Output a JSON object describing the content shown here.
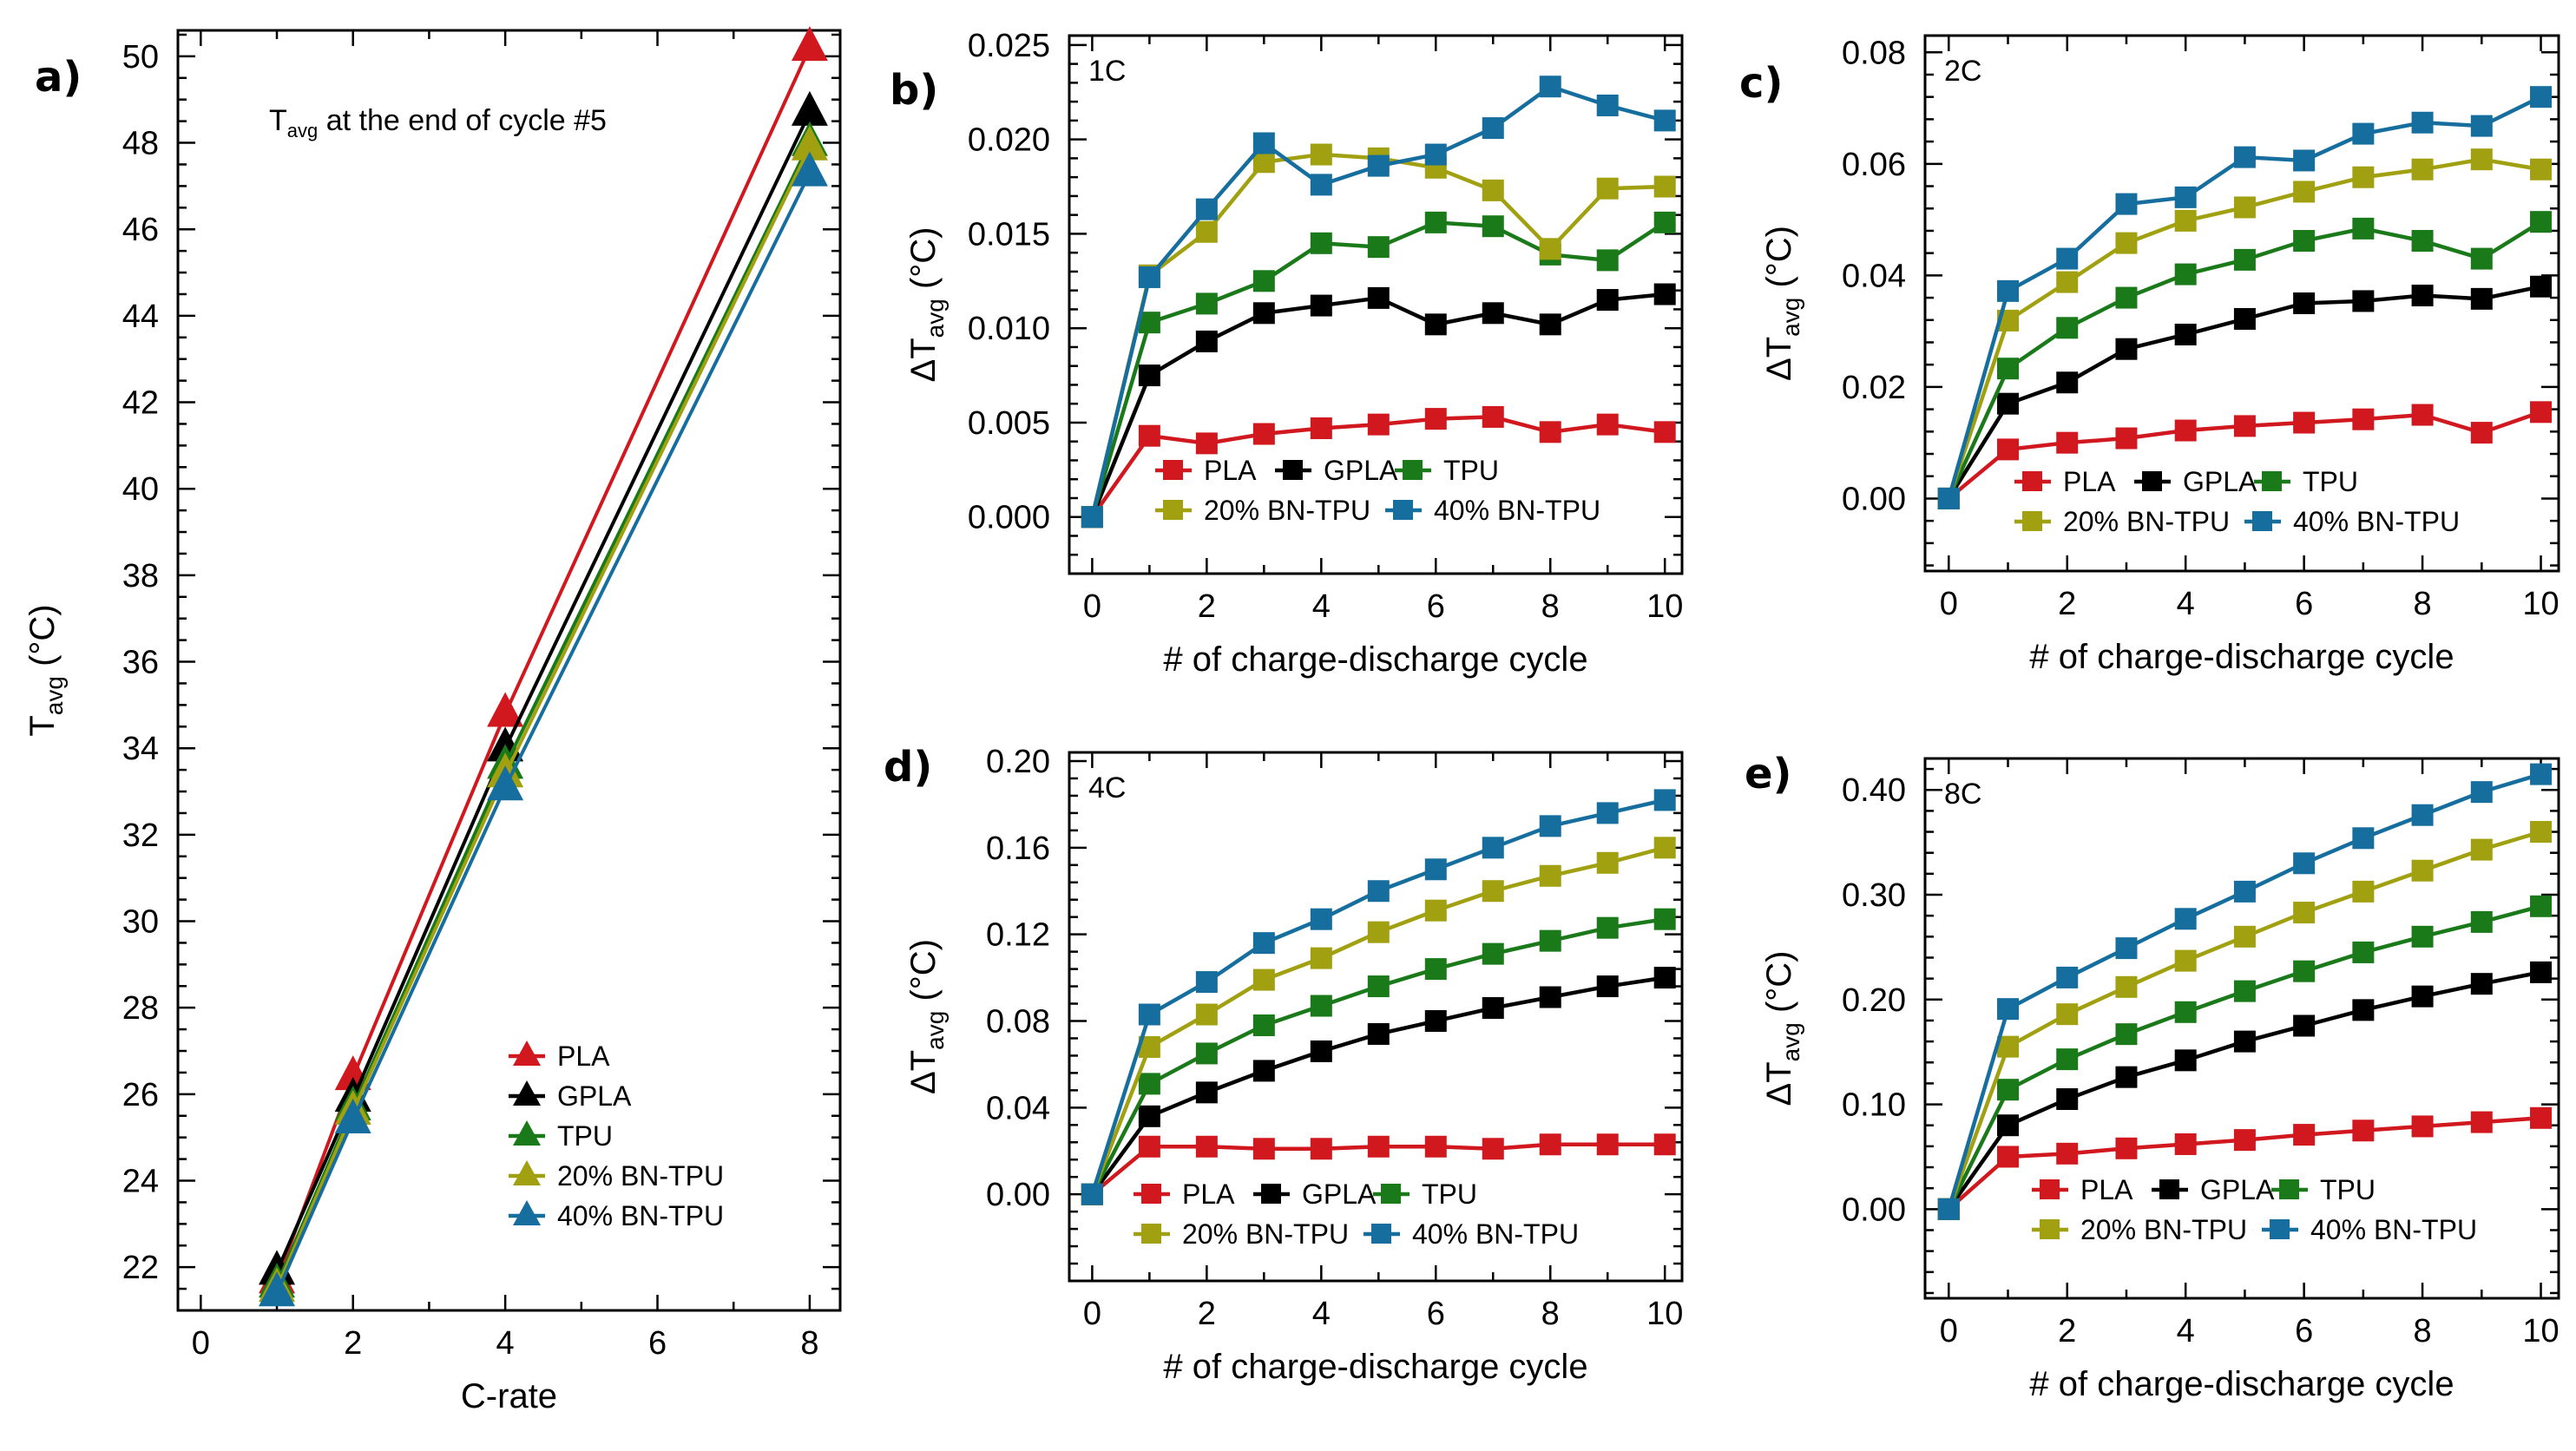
{
  "figure": {
    "colors": {
      "PLA": "#d0181e",
      "GPLA": "#000000",
      "TPU": "#1a7a1a",
      "20% BN-TPU": "#a0a010",
      "40% BN-TPU": "#166e9e"
    }
  },
  "chart_data": [
    {
      "id": "a",
      "type": "line",
      "panel_label": "a)",
      "annotation": {
        "main": "T",
        "sub": "avg",
        "rest": " at the end of cycle #5"
      },
      "xlabel": "C-rate",
      "ylabel": {
        "main": "T",
        "sub": "avg",
        "unit": " (°C)"
      },
      "xlim": [
        -0.3,
        8.4
      ],
      "ylim": [
        21,
        50.6
      ],
      "xticks": [
        0,
        2,
        4,
        6,
        8
      ],
      "xtick_labels": [
        "0",
        "2",
        "4",
        "6",
        "8"
      ],
      "yticks": [
        22,
        24,
        26,
        28,
        30,
        32,
        34,
        36,
        38,
        40,
        42,
        44,
        46,
        48,
        50
      ],
      "ytick_labels": [
        "22",
        "24",
        "26",
        "28",
        "30",
        "32",
        "34",
        "36",
        "38",
        "40",
        "42",
        "44",
        "46",
        "48",
        "50"
      ],
      "marker": "triangle",
      "legend_position": "lower-right",
      "x": [
        1,
        2,
        4,
        8
      ],
      "series": [
        {
          "name": "PLA",
          "values": [
            21.7,
            26.4,
            34.8,
            50.2
          ]
        },
        {
          "name": "GPLA",
          "values": [
            21.9,
            25.9,
            34.0,
            48.7
          ]
        },
        {
          "name": "TPU",
          "values": [
            21.6,
            25.7,
            33.6,
            48.0
          ]
        },
        {
          "name": "20% BN-TPU",
          "values": [
            21.5,
            25.6,
            33.4,
            47.9
          ]
        },
        {
          "name": "40% BN-TPU",
          "values": [
            21.4,
            25.4,
            33.1,
            47.3
          ]
        }
      ]
    },
    {
      "id": "b",
      "type": "line",
      "panel_label": "b)",
      "rate_label": "1C",
      "xlabel": "# of charge-discharge cycle",
      "ylabel": {
        "main": "ΔT",
        "sub": "avg",
        "unit": " (°C)"
      },
      "xlim": [
        -0.4,
        10.3
      ],
      "ylim": [
        -0.003,
        0.0255
      ],
      "xticks": [
        0,
        2,
        4,
        6,
        8,
        10
      ],
      "xtick_labels": [
        "0",
        "2",
        "4",
        "6",
        "8",
        "10"
      ],
      "yticks": [
        0,
        0.005,
        0.01,
        0.015,
        0.02,
        0.025
      ],
      "ytick_labels": [
        "0.000",
        "0.005",
        "0.010",
        "0.015",
        "0.020",
        "0.025"
      ],
      "marker": "square",
      "legend_position": "bottom",
      "x": [
        0,
        1,
        2,
        3,
        4,
        5,
        6,
        7,
        8,
        9,
        10
      ],
      "series": [
        {
          "name": "PLA",
          "values": [
            0,
            0.0043,
            0.0039,
            0.0044,
            0.0047,
            0.0049,
            0.0052,
            0.0053,
            0.0045,
            0.0049,
            0.0045
          ]
        },
        {
          "name": "GPLA",
          "values": [
            0,
            0.0075,
            0.0093,
            0.0108,
            0.0112,
            0.0116,
            0.0102,
            0.0108,
            0.0102,
            0.0115,
            0.0118
          ]
        },
        {
          "name": "TPU",
          "values": [
            0,
            0.0103,
            0.0113,
            0.0125,
            0.0145,
            0.0143,
            0.0156,
            0.0154,
            0.0139,
            0.0136,
            0.0156
          ]
        },
        {
          "name": "20% BN-TPU",
          "values": [
            0,
            0.0128,
            0.0151,
            0.0188,
            0.0192,
            0.019,
            0.0185,
            0.0173,
            0.0142,
            0.0174,
            0.0175
          ]
        },
        {
          "name": "40% BN-TPU",
          "values": [
            0,
            0.0127,
            0.0163,
            0.0198,
            0.0176,
            0.0186,
            0.0192,
            0.0206,
            0.0228,
            0.0218,
            0.021
          ]
        }
      ]
    },
    {
      "id": "c",
      "type": "line",
      "panel_label": "c)",
      "rate_label": "2C",
      "xlabel": "# of charge-discharge cycle",
      "ylabel": {
        "main": "ΔT",
        "sub": "avg",
        "unit": " (°C)"
      },
      "xlim": [
        -0.4,
        10.3
      ],
      "ylim": [
        -0.013,
        0.083
      ],
      "xticks": [
        0,
        2,
        4,
        6,
        8,
        10
      ],
      "xtick_labels": [
        "0",
        "2",
        "4",
        "6",
        "8",
        "10"
      ],
      "yticks": [
        0,
        0.02,
        0.04,
        0.06,
        0.08
      ],
      "ytick_labels": [
        "0.00",
        "0.02",
        "0.04",
        "0.06",
        "0.08"
      ],
      "marker": "square",
      "legend_position": "bottom",
      "x": [
        0,
        1,
        2,
        3,
        4,
        5,
        6,
        7,
        8,
        9,
        10
      ],
      "series": [
        {
          "name": "PLA",
          "values": [
            0,
            0.0088,
            0.01,
            0.0108,
            0.0122,
            0.013,
            0.0136,
            0.0142,
            0.015,
            0.0118,
            0.0155
          ]
        },
        {
          "name": "GPLA",
          "values": [
            0,
            0.017,
            0.0208,
            0.0268,
            0.0294,
            0.0322,
            0.035,
            0.0354,
            0.0364,
            0.0358,
            0.038
          ]
        },
        {
          "name": "TPU",
          "values": [
            0,
            0.0233,
            0.0306,
            0.036,
            0.0402,
            0.0428,
            0.0462,
            0.0484,
            0.0462,
            0.043,
            0.0496
          ]
        },
        {
          "name": "20% BN-TPU",
          "values": [
            0,
            0.0319,
            0.0388,
            0.0458,
            0.0498,
            0.0522,
            0.055,
            0.0576,
            0.059,
            0.0608,
            0.059
          ]
        },
        {
          "name": "40% BN-TPU",
          "values": [
            0,
            0.0372,
            0.043,
            0.0528,
            0.054,
            0.0612,
            0.0606,
            0.0654,
            0.0674,
            0.0668,
            0.072
          ]
        }
      ]
    },
    {
      "id": "d",
      "type": "line",
      "panel_label": "d)",
      "rate_label": "4C",
      "xlabel": "# of charge-discharge cycle",
      "ylabel": {
        "main": "ΔT",
        "sub": "avg",
        "unit": " (°C)"
      },
      "xlim": [
        -0.4,
        10.3
      ],
      "ylim": [
        -0.04,
        0.204
      ],
      "xticks": [
        0,
        2,
        4,
        6,
        8,
        10
      ],
      "xtick_labels": [
        "0",
        "2",
        "4",
        "6",
        "8",
        "10"
      ],
      "yticks": [
        0,
        0.04,
        0.08,
        0.12,
        0.16,
        0.2
      ],
      "ytick_labels": [
        "0.00",
        "0.04",
        "0.08",
        "0.12",
        "0.16",
        "0.20"
      ],
      "marker": "square",
      "legend_position": "bottom",
      "x": [
        0,
        1,
        2,
        3,
        4,
        5,
        6,
        7,
        8,
        9,
        10
      ],
      "series": [
        {
          "name": "PLA",
          "values": [
            0,
            0.022,
            0.022,
            0.021,
            0.021,
            0.022,
            0.022,
            0.021,
            0.023,
            0.023,
            0.023
          ]
        },
        {
          "name": "GPLA",
          "values": [
            0,
            0.036,
            0.047,
            0.057,
            0.066,
            0.074,
            0.08,
            0.086,
            0.091,
            0.096,
            0.1
          ]
        },
        {
          "name": "TPU",
          "values": [
            0,
            0.051,
            0.065,
            0.078,
            0.087,
            0.096,
            0.104,
            0.111,
            0.117,
            0.123,
            0.127
          ]
        },
        {
          "name": "20% BN-TPU",
          "values": [
            0,
            0.068,
            0.083,
            0.099,
            0.109,
            0.121,
            0.131,
            0.14,
            0.147,
            0.153,
            0.16
          ]
        },
        {
          "name": "40% BN-TPU",
          "values": [
            0,
            0.083,
            0.098,
            0.116,
            0.127,
            0.14,
            0.15,
            0.16,
            0.17,
            0.176,
            0.182
          ]
        }
      ]
    },
    {
      "id": "e",
      "type": "line",
      "panel_label": "e)",
      "rate_label": "8C",
      "xlabel": "# of charge-discharge cycle",
      "ylabel": {
        "main": "ΔT",
        "sub": "avg",
        "unit": " (°C)"
      },
      "xlim": [
        -0.4,
        10.3
      ],
      "ylim": [
        -0.085,
        0.43
      ],
      "xticks": [
        0,
        2,
        4,
        6,
        8,
        10
      ],
      "xtick_labels": [
        "0",
        "2",
        "4",
        "6",
        "8",
        "10"
      ],
      "yticks": [
        0,
        0.1,
        0.2,
        0.3,
        0.4
      ],
      "ytick_labels": [
        "0.00",
        "0.10",
        "0.20",
        "0.30",
        "0.40"
      ],
      "marker": "square",
      "legend_position": "bottom",
      "x": [
        0,
        1,
        2,
        3,
        4,
        5,
        6,
        7,
        8,
        9,
        10
      ],
      "series": [
        {
          "name": "PLA",
          "values": [
            0,
            0.05,
            0.053,
            0.058,
            0.062,
            0.066,
            0.071,
            0.075,
            0.079,
            0.083,
            0.087
          ]
        },
        {
          "name": "GPLA",
          "values": [
            0,
            0.08,
            0.105,
            0.126,
            0.142,
            0.16,
            0.175,
            0.19,
            0.203,
            0.215,
            0.226
          ]
        },
        {
          "name": "TPU",
          "values": [
            0,
            0.114,
            0.143,
            0.167,
            0.188,
            0.208,
            0.227,
            0.245,
            0.26,
            0.274,
            0.289
          ]
        },
        {
          "name": "20% BN-TPU",
          "values": [
            0,
            0.155,
            0.186,
            0.212,
            0.237,
            0.26,
            0.283,
            0.303,
            0.323,
            0.343,
            0.36
          ]
        },
        {
          "name": "40% BN-TPU",
          "values": [
            0,
            0.191,
            0.221,
            0.249,
            0.277,
            0.303,
            0.33,
            0.354,
            0.376,
            0.398,
            0.415
          ]
        }
      ]
    }
  ]
}
